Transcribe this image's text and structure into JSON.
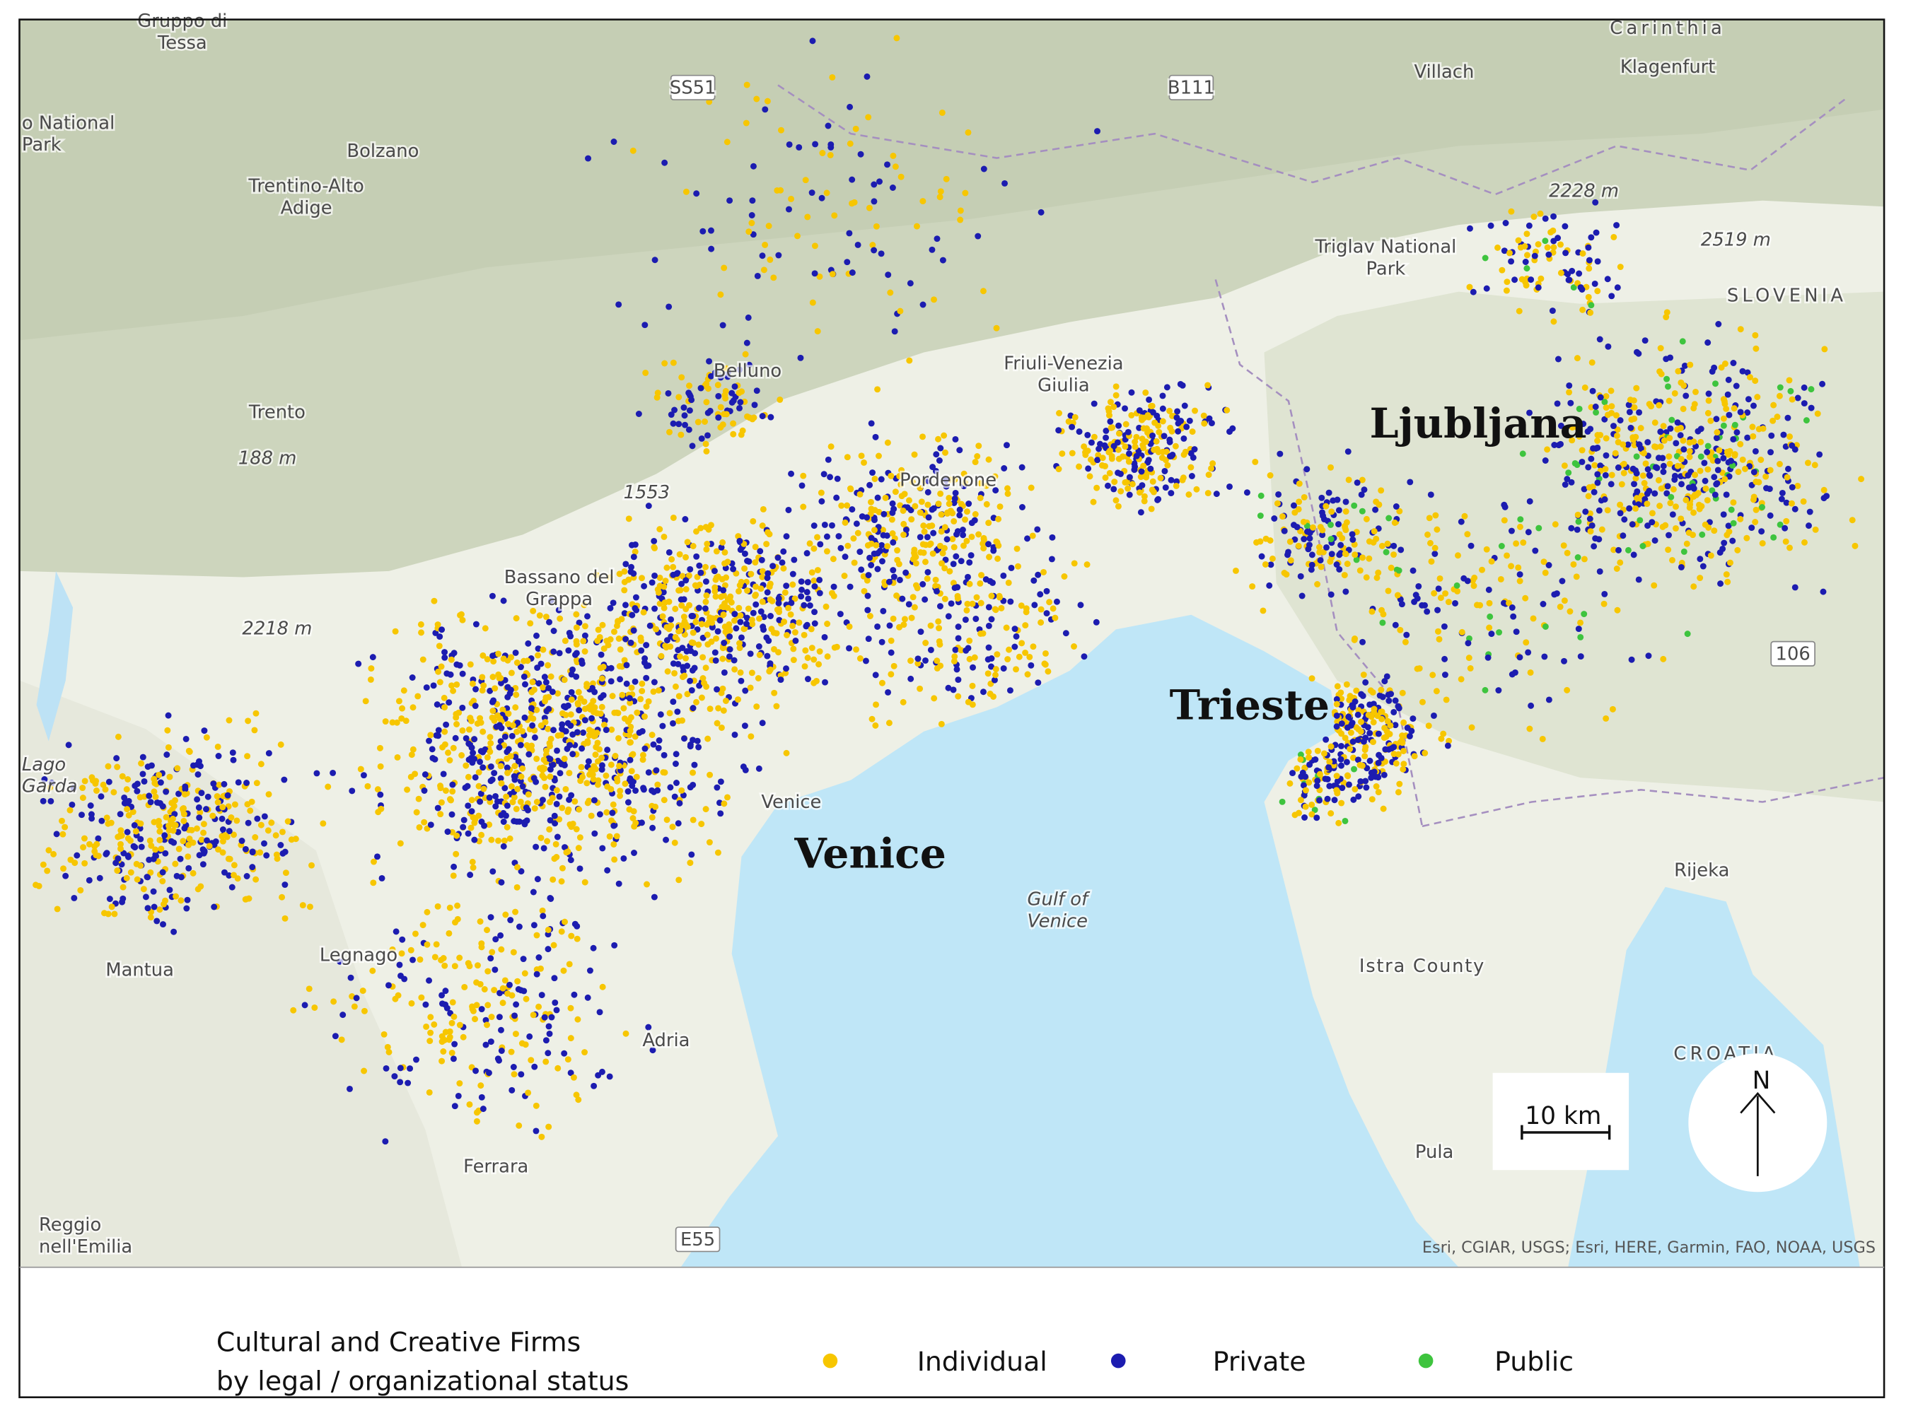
{
  "map": {
    "cities": [
      "Venice",
      "Trieste",
      "Ljubljana"
    ],
    "places": [
      [
        "Gruppo di",
        "Tessa"
      ],
      [
        "Carinthia"
      ],
      [
        "Villach"
      ],
      [
        "Klagenfurt"
      ],
      [
        "SS51"
      ],
      [
        "B111"
      ],
      [
        "o National",
        "Park"
      ],
      [
        "Bolzano"
      ],
      [
        "Trentino-Alto",
        "Adige"
      ],
      [
        "Trento"
      ],
      [
        "188 m"
      ],
      [
        "1553"
      ],
      [
        "2218 m"
      ],
      [
        "2228 m"
      ],
      [
        "2519 m"
      ],
      [
        "Triglav National",
        "Park"
      ],
      [
        "SLOVENIA"
      ],
      [
        "Belluno"
      ],
      [
        "Friuli-Venezia",
        "Giulia"
      ],
      [
        "Pordenone"
      ],
      [
        "Bassano del",
        "Grappa"
      ],
      [
        "Venice"
      ],
      [
        "Gulf of",
        "Venice"
      ],
      [
        "Istra County"
      ],
      [
        "Rijeka"
      ],
      [
        "CROATIA"
      ],
      [
        "Pula"
      ],
      [
        "Ferrara"
      ],
      [
        "Mantua"
      ],
      [
        "Legnago"
      ],
      [
        "Adria"
      ],
      [
        "Reggio",
        "nell'Emilia"
      ],
      [
        "E55"
      ],
      [
        "106"
      ],
      [
        "Lago",
        "Garda"
      ]
    ],
    "scale": "10 km",
    "north": "N",
    "attribution": "Esri, CGIAR, USGS; Esri, HERE, Garmin, FAO, NOAA, USGS",
    "legend": {
      "title": [
        "Cultural and Creative Firms",
        "by legal / organizational status"
      ],
      "items": [
        {
          "label": "Individual",
          "color": "#f7c600"
        },
        {
          "label": "Private",
          "color": "#1c1cb0"
        },
        {
          "label": "Public",
          "color": "#3ec43e"
        }
      ]
    }
  }
}
